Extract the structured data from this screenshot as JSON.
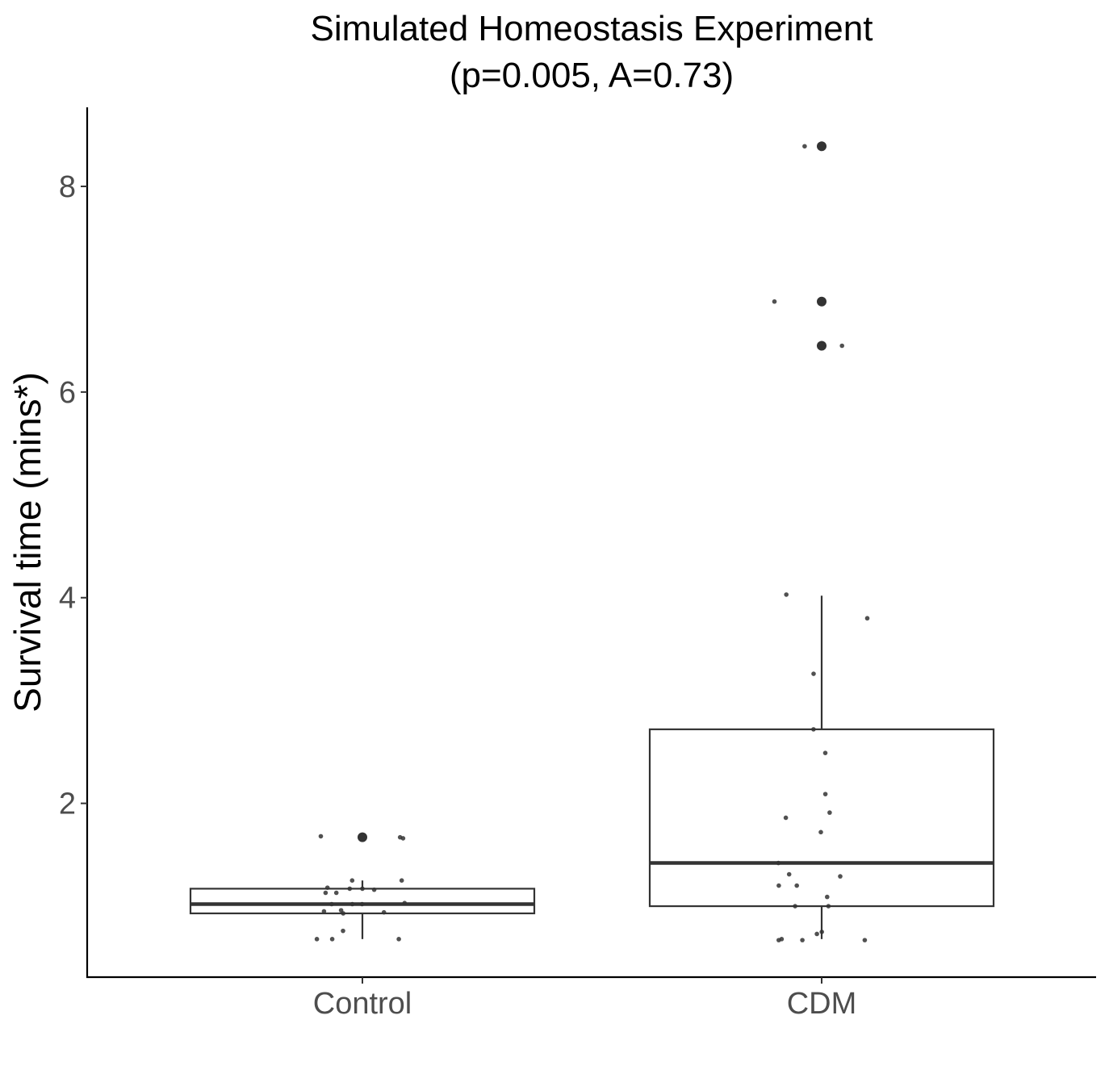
{
  "chart_data": {
    "type": "box",
    "title": "Simulated Homeostasis Experiment",
    "subtitle": "(p=0.005, A=0.73)",
    "xlabel": "",
    "ylabel": "Survival time (mins*)",
    "ylim": [
      0.3,
      8.75
    ],
    "yticks": [
      "2",
      "4",
      "6",
      "8"
    ],
    "categories": [
      "Control",
      "CDM"
    ],
    "grid": false,
    "groups": [
      {
        "name": "Control",
        "q1": 0.93,
        "median": 1.02,
        "q3": 1.17,
        "whisker_low": 0.68,
        "whisker_high": 1.25,
        "outliers": [
          1.67
        ],
        "points": [
          1.67,
          1.66,
          1.68,
          1.25,
          1.25,
          1.18,
          1.17,
          1.17,
          1.16,
          1.13,
          1.13,
          1.03,
          1.02,
          1.02,
          1.02,
          0.96,
          0.95,
          0.94,
          0.93,
          0.76,
          0.68,
          0.68,
          0.68
        ]
      },
      {
        "name": "CDM",
        "q1": 1.0,
        "median": 1.42,
        "q3": 2.72,
        "whisker_low": 0.68,
        "whisker_high": 4.02,
        "outliers": [
          8.39,
          6.88,
          6.45
        ],
        "points": [
          8.39,
          6.88,
          6.45,
          4.03,
          3.8,
          3.26,
          2.72,
          2.49,
          2.09,
          1.91,
          1.86,
          1.72,
          1.42,
          1.31,
          1.29,
          1.2,
          1.2,
          1.09,
          1.0,
          1.0,
          0.75,
          0.73,
          0.68,
          0.67,
          0.67,
          0.67
        ]
      }
    ]
  }
}
